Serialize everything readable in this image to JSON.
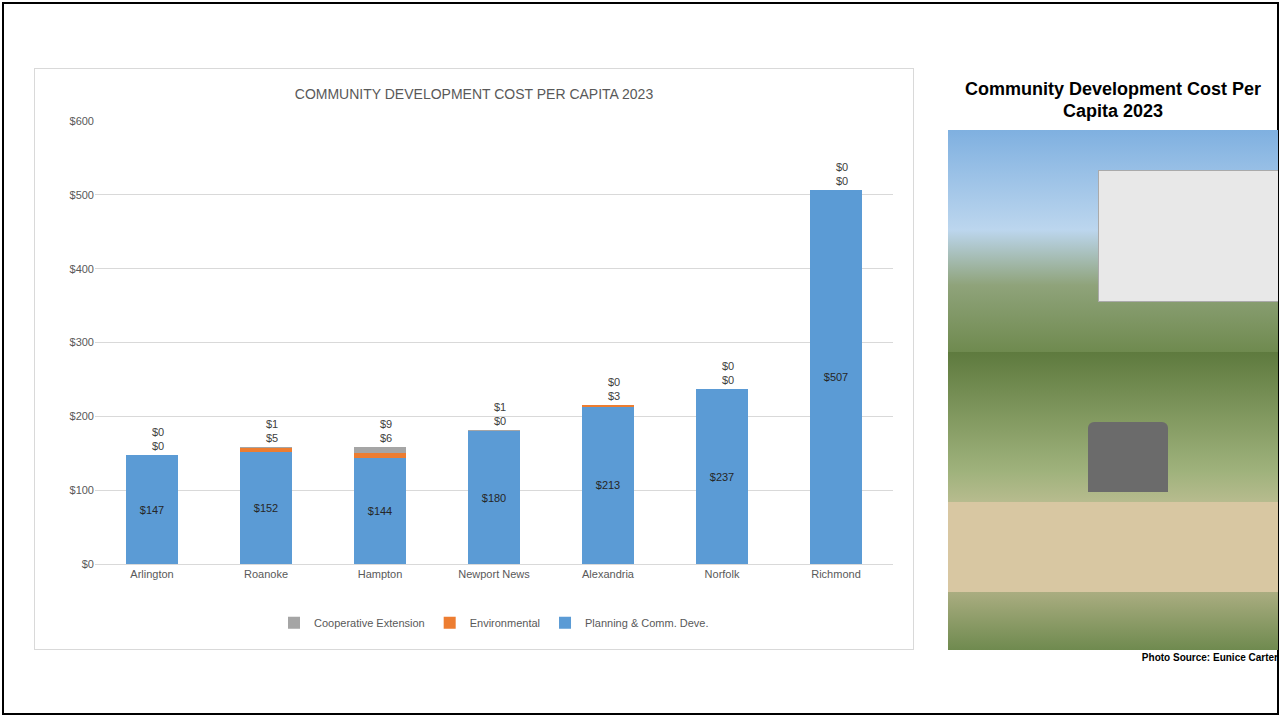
{
  "chart_data": {
    "type": "bar",
    "title": "COMMUNITY DEVELOPMENT COST PER CAPITA 2023",
    "categories": [
      "Arlington",
      "Roanoke",
      "Hampton",
      "Newport News",
      "Alexandria",
      "Norfolk",
      "Richmond"
    ],
    "stacked": true,
    "data_labels": true,
    "grid": true,
    "legend": "bottom",
    "ylim": [
      0,
      600
    ],
    "yticks": [
      {
        "value": 0,
        "label": "$0"
      },
      {
        "value": 100,
        "label": "$100"
      },
      {
        "value": 200,
        "label": "$200"
      },
      {
        "value": 300,
        "label": "$300"
      },
      {
        "value": 400,
        "label": "$400"
      },
      {
        "value": 500,
        "label": "$500"
      },
      {
        "value": 600,
        "label": "$600"
      }
    ],
    "series": [
      {
        "name": "Planning & Comm. Deve.",
        "color": "#5b9bd5",
        "values": [
          147,
          152,
          144,
          180,
          213,
          237,
          507
        ],
        "value_labels": [
          "$147",
          "$152",
          "$144",
          "$180",
          "$213",
          "$237",
          "$507"
        ]
      },
      {
        "name": "Environmental",
        "color": "#ed7d31",
        "values": [
          0,
          5,
          6,
          0,
          3,
          0,
          0
        ],
        "value_labels": [
          "$0",
          "$5",
          "$6",
          "$0",
          "$3",
          "$0",
          "$0"
        ]
      },
      {
        "name": "Cooperative Extension",
        "color": "#a5a5a5",
        "values": [
          0,
          1,
          9,
          1,
          0,
          0,
          0
        ],
        "value_labels": [
          "$0",
          "$1",
          "$9",
          "$1",
          "$0",
          "$0",
          "$0"
        ]
      }
    ]
  },
  "side_panel": {
    "title": "Community Development Cost Per Capita 2023",
    "photo_source": "Photo Source: Eunice Carter"
  }
}
